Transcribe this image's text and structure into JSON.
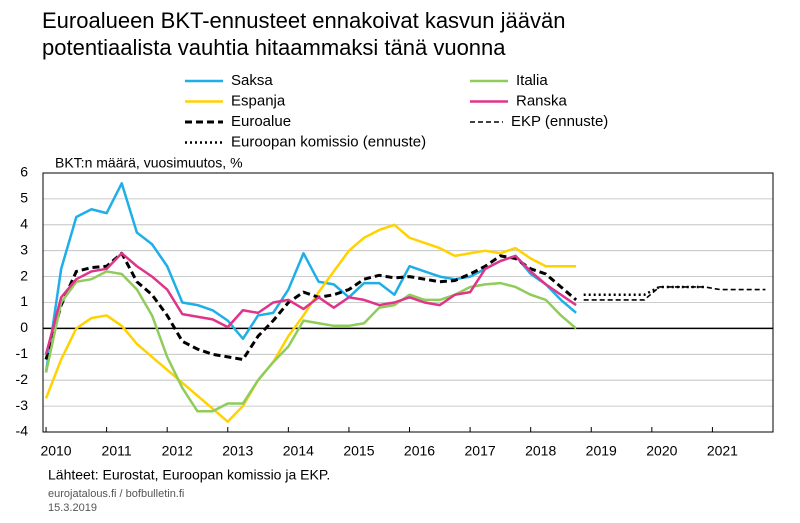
{
  "chart_data": {
    "type": "line",
    "title": [
      "Euroalueen BKT-ennusteet ennakoivat kasvun jäävän",
      "potentiaalista vauhtia hitaammaksi tänä vuonna"
    ],
    "y_label": "BKT:n määrä, vuosimuutos, %",
    "xlim": [
      2009.95,
      2022
    ],
    "ylim": [
      -4,
      6
    ],
    "xticks": [
      2010,
      2011,
      2012,
      2013,
      2014,
      2015,
      2016,
      2017,
      2018,
      2019,
      2020,
      2021
    ],
    "yticks": [
      -4,
      -3,
      -2,
      -1,
      0,
      1,
      2,
      3,
      4,
      5,
      6
    ],
    "grid": true,
    "series": [
      {
        "name": "Saksa",
        "color": "#1eaee8",
        "line_style": "solid",
        "x": [
          2010,
          2010.25,
          2010.5,
          2010.75,
          2011,
          2011.25,
          2011.5,
          2011.75,
          2012,
          2012.25,
          2012.5,
          2012.75,
          2013,
          2013.25,
          2013.5,
          2013.75,
          2014,
          2014.25,
          2014.5,
          2014.75,
          2015,
          2015.25,
          2015.5,
          2015.75,
          2016,
          2016.25,
          2016.5,
          2016.75,
          2017,
          2017.25,
          2017.5,
          2017.75,
          2018,
          2018.25,
          2018.5,
          2018.75
        ],
        "values": [
          -1.7,
          2.3,
          4.3,
          4.6,
          4.45,
          5.6,
          3.7,
          3.25,
          2.4,
          1.0,
          0.9,
          0.7,
          0.3,
          -0.4,
          0.5,
          0.6,
          1.5,
          2.9,
          1.8,
          1.7,
          1.2,
          1.75,
          1.75,
          1.3,
          2.4,
          2.2,
          2.0,
          1.9,
          2.0,
          2.3,
          2.6,
          2.8,
          2.1,
          1.7,
          1.1,
          0.6
        ]
      },
      {
        "name": "Espanja",
        "color": "#ffd200",
        "line_style": "solid",
        "x": [
          2010,
          2010.25,
          2010.5,
          2010.75,
          2011,
          2011.25,
          2011.5,
          2011.75,
          2012,
          2012.25,
          2012.5,
          2012.75,
          2013,
          2013.25,
          2013.5,
          2013.75,
          2014,
          2014.25,
          2014.5,
          2014.75,
          2015,
          2015.25,
          2015.5,
          2015.75,
          2016,
          2016.25,
          2016.5,
          2016.75,
          2017,
          2017.25,
          2017.5,
          2017.75,
          2018,
          2018.25,
          2018.5,
          2018.75
        ],
        "values": [
          -2.7,
          -1.2,
          0.0,
          0.4,
          0.5,
          0.1,
          -0.6,
          -1.1,
          -1.6,
          -2.1,
          -2.6,
          -3.1,
          -3.6,
          -3.0,
          -2.0,
          -1.3,
          -0.3,
          0.5,
          1.4,
          2.2,
          3.0,
          3.5,
          3.8,
          4.0,
          3.5,
          3.3,
          3.1,
          2.8,
          2.9,
          3.0,
          2.9,
          3.1,
          2.7,
          2.4,
          2.4,
          2.4
        ]
      },
      {
        "name": "Euroalue",
        "color": "#000000",
        "line_style": "dashed",
        "x": [
          2010,
          2010.25,
          2010.5,
          2010.75,
          2011,
          2011.25,
          2011.5,
          2011.75,
          2012,
          2012.25,
          2012.5,
          2012.75,
          2013,
          2013.25,
          2013.5,
          2013.75,
          2014,
          2014.25,
          2014.5,
          2014.75,
          2015,
          2015.25,
          2015.5,
          2015.75,
          2016,
          2016.25,
          2016.5,
          2016.75,
          2017,
          2017.25,
          2017.5,
          2017.75,
          2018,
          2018.25,
          2018.5,
          2018.75
        ],
        "values": [
          -1.2,
          0.9,
          2.2,
          2.35,
          2.4,
          2.9,
          1.8,
          1.3,
          0.5,
          -0.5,
          -0.8,
          -1.0,
          -1.1,
          -1.2,
          -0.3,
          0.3,
          1.0,
          1.4,
          1.2,
          1.3,
          1.5,
          1.9,
          2.05,
          1.95,
          2.0,
          1.9,
          1.8,
          1.85,
          2.1,
          2.4,
          2.8,
          2.7,
          2.3,
          2.1,
          1.6,
          1.1
        ]
      },
      {
        "name": "Euroopan komissio (ennuste)",
        "color": "#000000",
        "line_style": "dotted",
        "x": [
          2018.875,
          2019.875,
          2020.125,
          2020.875
        ],
        "values": [
          1.3,
          1.3,
          1.6,
          1.6
        ]
      },
      {
        "name": "Italia",
        "color": "#8fcc5a",
        "line_style": "solid",
        "x": [
          2010,
          2010.25,
          2010.5,
          2010.75,
          2011,
          2011.25,
          2011.5,
          2011.75,
          2012,
          2012.25,
          2012.5,
          2012.75,
          2013,
          2013.25,
          2013.5,
          2013.75,
          2014,
          2014.25,
          2014.5,
          2014.75,
          2015,
          2015.25,
          2015.5,
          2015.75,
          2016,
          2016.25,
          2016.5,
          2016.75,
          2017,
          2017.25,
          2017.5,
          2017.75,
          2018,
          2018.25,
          2018.5,
          2018.75
        ],
        "values": [
          -1.7,
          1.0,
          1.8,
          1.9,
          2.2,
          2.1,
          1.5,
          0.5,
          -1.1,
          -2.3,
          -3.2,
          -3.2,
          -2.9,
          -2.9,
          -2.0,
          -1.3,
          -0.7,
          0.3,
          0.2,
          0.1,
          0.1,
          0.2,
          0.8,
          0.9,
          1.3,
          1.1,
          1.1,
          1.3,
          1.6,
          1.7,
          1.75,
          1.6,
          1.3,
          1.1,
          0.5,
          0.0
        ]
      },
      {
        "name": "Ranska",
        "color": "#e0338a",
        "line_style": "solid",
        "x": [
          2010,
          2010.25,
          2010.5,
          2010.75,
          2011,
          2011.25,
          2011.5,
          2011.75,
          2012,
          2012.25,
          2012.5,
          2012.75,
          2013,
          2013.25,
          2013.5,
          2013.75,
          2014,
          2014.25,
          2014.5,
          2014.75,
          2015,
          2015.25,
          2015.5,
          2015.75,
          2016,
          2016.25,
          2016.5,
          2016.75,
          2017,
          2017.25,
          2017.5,
          2017.75,
          2018,
          2018.25,
          2018.5,
          2018.75
        ],
        "values": [
          -1.0,
          1.2,
          1.9,
          2.2,
          2.3,
          2.9,
          2.4,
          2.0,
          1.5,
          0.55,
          0.45,
          0.35,
          0.05,
          0.7,
          0.6,
          1.0,
          1.1,
          0.75,
          1.2,
          0.8,
          1.2,
          1.1,
          0.9,
          1.0,
          1.2,
          1.0,
          0.9,
          1.3,
          1.4,
          2.3,
          2.6,
          2.8,
          2.2,
          1.7,
          1.3,
          0.9
        ]
      },
      {
        "name": "EKP (ennuste)",
        "color": "#000000",
        "line_style": "thin-dashed",
        "x": [
          2018.875,
          2019.875,
          2020.125,
          2020.875,
          2021.125,
          2021.875
        ],
        "values": [
          1.1,
          1.1,
          1.6,
          1.6,
          1.5,
          1.5
        ]
      }
    ],
    "footnotes": [
      "Lähteet: Eurostat, Euroopan komissio ja EKP.",
      "eurojatalous.fi / bofbulletin.fi",
      "15.3.2019"
    ]
  }
}
